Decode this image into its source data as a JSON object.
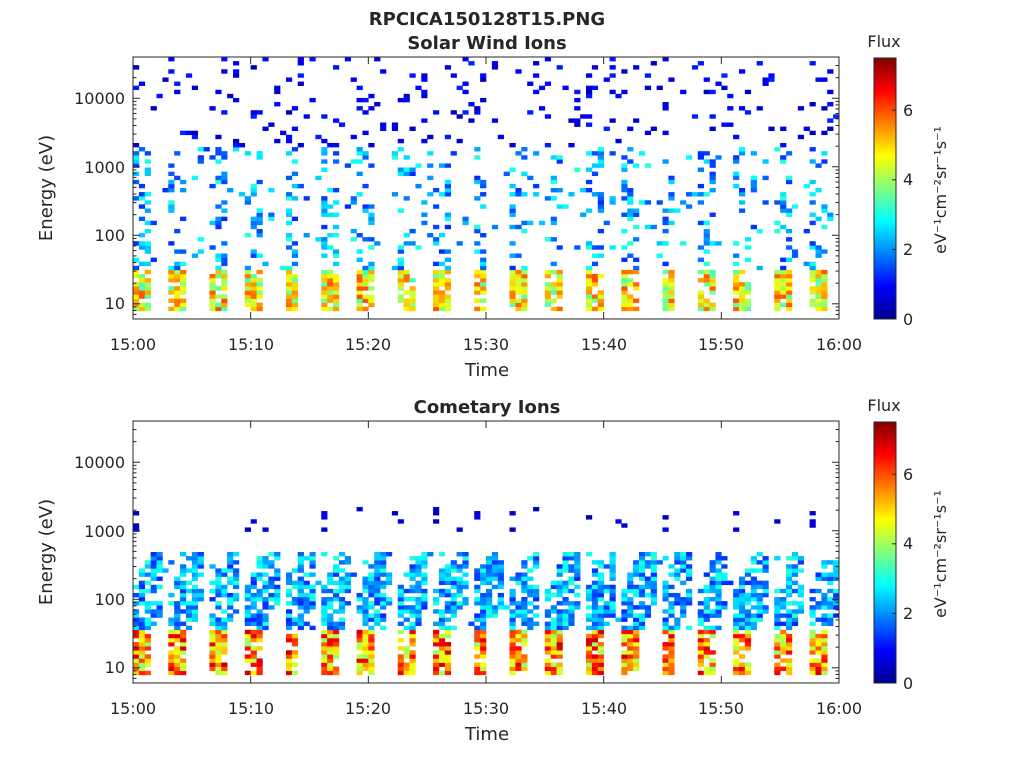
{
  "figure_title": "RPCICA150128T15.PNG",
  "colorbar": {
    "title": "Flux",
    "label": "eV⁻¹cm⁻²sr⁻¹s⁻¹",
    "ticks": [
      "0",
      "2",
      "4",
      "6"
    ],
    "range": [
      0,
      7.5
    ],
    "colormap": "jet"
  },
  "chart_data": [
    {
      "type": "heatmap",
      "title": "Solar Wind Ions",
      "xlabel": "Time",
      "ylabel": "Energy (eV)",
      "x_ticks": [
        "15:00",
        "15:10",
        "15:20",
        "15:30",
        "15:40",
        "15:50",
        "16:00"
      ],
      "x_range_minutes": [
        0,
        60
      ],
      "y_ticks": [
        "10",
        "100",
        "1000",
        "10000"
      ],
      "y_range_eV": [
        6,
        40000
      ],
      "y_scale": "log",
      "z_label": "Flux",
      "sweep_period_minutes": 3.2,
      "low_energy_band_eV": [
        8,
        30
      ],
      "low_energy_peak_flux": 6,
      "mid_energy_band_eV": [
        30,
        2000
      ],
      "mid_energy_peak_flux": 3.5,
      "high_energy_band_eV": [
        2000,
        40000
      ],
      "high_energy_peak_flux": 1
    },
    {
      "type": "heatmap",
      "title": "Cometary Ions",
      "xlabel": "Time",
      "ylabel": "Energy (eV)",
      "x_ticks": [
        "15:00",
        "15:10",
        "15:20",
        "15:30",
        "15:40",
        "15:50",
        "16:00"
      ],
      "x_range_minutes": [
        0,
        60
      ],
      "y_ticks": [
        "10",
        "100",
        "1000",
        "10000"
      ],
      "y_range_eV": [
        6,
        40000
      ],
      "y_scale": "log",
      "z_label": "Flux",
      "sweep_period_minutes": 3.2,
      "low_energy_band_eV": [
        8,
        35
      ],
      "low_energy_peak_flux": 7,
      "mid_energy_band_eV": [
        35,
        500
      ],
      "mid_energy_peak_flux": 3.5,
      "high_energy_band_eV": [
        1000,
        2200
      ],
      "high_energy_peak_flux": 0.8
    }
  ]
}
